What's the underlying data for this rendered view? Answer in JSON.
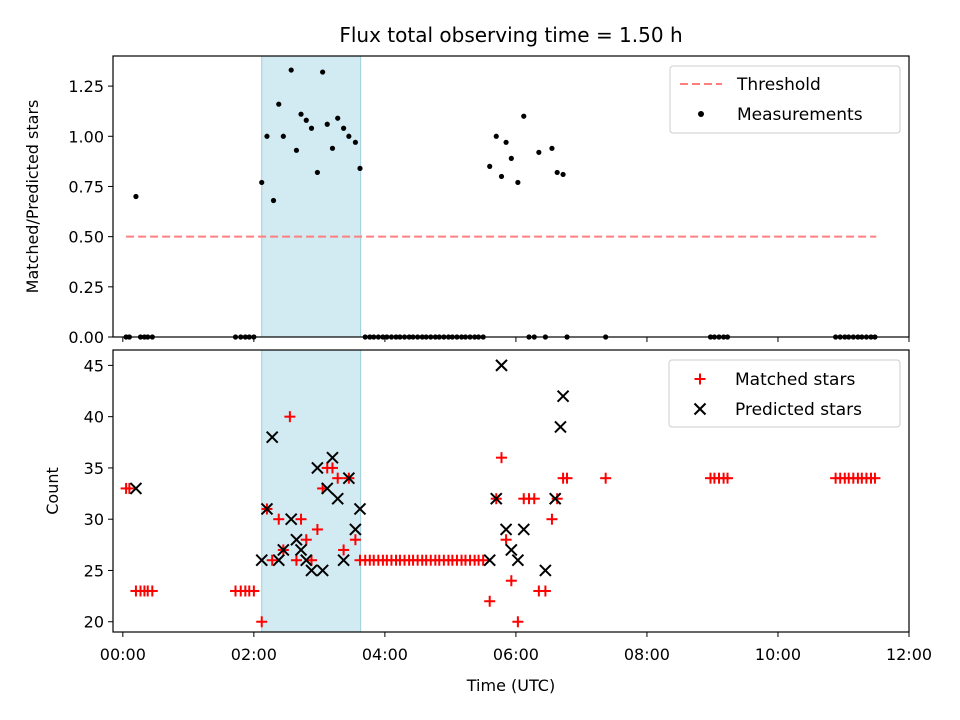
{
  "chart_data": [
    {
      "type": "scatter",
      "title": "Flux total observing time = 1.50 h",
      "ylabel": "Matched/Predicted stars",
      "xlabel": "",
      "xlim": [
        -0.15,
        12.0
      ],
      "ylim": [
        0,
        1.4
      ],
      "yticks": [
        0.0,
        0.25,
        0.5,
        0.75,
        1.0,
        1.25
      ],
      "ytick_labels": [
        "0.00",
        "0.25",
        "0.50",
        "0.75",
        "1.00",
        "1.25"
      ],
      "xticks": [
        0,
        2,
        4,
        6,
        8,
        10,
        12
      ],
      "xtick_labels": [
        "",
        "",
        "",
        "",
        "",
        "",
        ""
      ],
      "shaded_span": [
        2.12,
        3.63
      ],
      "shaded_color": "#add8e6",
      "legend": {
        "position": "upper right",
        "entries": [
          "Threshold",
          "Measurements"
        ]
      },
      "threshold": {
        "name": "Threshold",
        "y": 0.5,
        "x": [
          0.05,
          11.5
        ],
        "color": "#ff7f7f",
        "style": "dashed"
      },
      "measurements": {
        "name": "Measurements",
        "color": "#000000",
        "x": [
          0.05,
          0.1,
          0.2,
          0.27,
          0.33,
          0.38,
          0.45,
          1.72,
          1.8,
          1.87,
          1.93,
          2.0,
          2.12,
          2.2,
          2.3,
          2.38,
          2.45,
          2.57,
          2.65,
          2.72,
          2.8,
          2.88,
          2.97,
          3.05,
          3.12,
          3.2,
          3.28,
          3.37,
          3.45,
          3.55,
          3.62,
          3.7,
          3.77,
          3.83,
          3.9,
          3.97,
          4.03,
          4.1,
          4.17,
          4.23,
          4.3,
          4.37,
          4.43,
          4.5,
          4.57,
          4.63,
          4.7,
          4.77,
          4.83,
          4.9,
          4.97,
          5.03,
          5.1,
          5.17,
          5.23,
          5.3,
          5.37,
          5.43,
          5.5,
          5.6,
          5.7,
          5.78,
          5.85,
          5.93,
          6.03,
          6.12,
          6.2,
          6.28,
          6.35,
          6.45,
          6.55,
          6.63,
          6.72,
          6.78,
          7.37,
          8.97,
          9.03,
          9.1,
          9.17,
          9.23,
          10.88,
          10.95,
          11.02,
          11.08,
          11.15,
          11.22,
          11.28,
          11.35,
          11.42,
          11.48
        ],
        "y": [
          0,
          0,
          0.7,
          0,
          0,
          0,
          0,
          0,
          0,
          0,
          0,
          0,
          0.77,
          1.0,
          0.68,
          1.16,
          1.0,
          1.33,
          0.93,
          1.11,
          1.08,
          1.04,
          0.82,
          1.32,
          1.06,
          0.94,
          1.09,
          1.04,
          1.0,
          0.97,
          0.84,
          0,
          0,
          0,
          0,
          0,
          0,
          0,
          0,
          0,
          0,
          0,
          0,
          0,
          0,
          0,
          0,
          0,
          0,
          0,
          0,
          0,
          0,
          0,
          0,
          0,
          0,
          0,
          0,
          0.85,
          1.0,
          0.8,
          0.97,
          0.89,
          0.77,
          1.1,
          0,
          0,
          0.92,
          0,
          0.94,
          0.82,
          0.81,
          0,
          0,
          0,
          0,
          0,
          0,
          0,
          0,
          0,
          0,
          0,
          0,
          0,
          0,
          0,
          0,
          0
        ]
      }
    },
    {
      "type": "scatter",
      "title": "",
      "ylabel": "Count",
      "xlabel": "Time (UTC)",
      "xlim": [
        -0.15,
        12.0
      ],
      "ylim": [
        19,
        46.5
      ],
      "yticks": [
        20,
        25,
        30,
        35,
        40,
        45
      ],
      "ytick_labels": [
        "20",
        "25",
        "30",
        "35",
        "40",
        "45"
      ],
      "xticks": [
        0,
        2,
        4,
        6,
        8,
        10,
        12
      ],
      "xtick_labels": [
        "00:00",
        "02:00",
        "04:00",
        "06:00",
        "08:00",
        "10:00",
        "12:00"
      ],
      "shaded_span": [
        2.12,
        3.63
      ],
      "shaded_color": "#add8e6",
      "legend": {
        "position": "upper right",
        "entries": [
          "Matched stars",
          "Predicted stars"
        ]
      },
      "series": [
        {
          "name": "Matched stars",
          "marker": "plus",
          "color": "#ff0000",
          "x": [
            0.05,
            0.1,
            0.2,
            0.27,
            0.33,
            0.38,
            0.45,
            1.72,
            1.8,
            1.87,
            1.93,
            2.0,
            2.12,
            2.2,
            2.28,
            2.38,
            2.45,
            2.55,
            2.65,
            2.72,
            2.8,
            2.88,
            2.97,
            3.05,
            3.12,
            3.2,
            3.28,
            3.37,
            3.45,
            3.55,
            3.62,
            3.7,
            3.77,
            3.83,
            3.9,
            3.97,
            4.03,
            4.1,
            4.17,
            4.23,
            4.3,
            4.37,
            4.43,
            4.5,
            4.57,
            4.63,
            4.7,
            4.77,
            4.83,
            4.9,
            4.97,
            5.03,
            5.1,
            5.17,
            5.23,
            5.3,
            5.37,
            5.43,
            5.5,
            5.6,
            5.7,
            5.78,
            5.85,
            5.93,
            6.03,
            6.12,
            6.2,
            6.28,
            6.35,
            6.45,
            6.55,
            6.63,
            6.72,
            6.78,
            7.37,
            8.97,
            9.03,
            9.1,
            9.17,
            9.23,
            10.88,
            10.95,
            11.02,
            11.08,
            11.15,
            11.22,
            11.28,
            11.35,
            11.42,
            11.48
          ],
          "y": [
            33,
            33,
            23,
            23,
            23,
            23,
            23,
            23,
            23,
            23,
            23,
            23,
            20,
            31,
            26,
            30,
            27,
            40,
            26,
            30,
            28,
            26,
            29,
            33,
            35,
            35,
            34,
            27,
            34,
            28,
            26,
            26,
            26,
            26,
            26,
            26,
            26,
            26,
            26,
            26,
            26,
            26,
            26,
            26,
            26,
            26,
            26,
            26,
            26,
            26,
            26,
            26,
            26,
            26,
            26,
            26,
            26,
            26,
            26,
            22,
            32,
            36,
            28,
            24,
            20,
            32,
            32,
            32,
            23,
            23,
            30,
            32,
            34,
            34,
            34,
            34,
            34,
            34,
            34,
            34,
            34,
            34,
            34,
            34,
            34,
            34,
            34,
            34,
            34,
            34
          ]
        },
        {
          "name": "Predicted stars",
          "marker": "x",
          "color": "#000000",
          "x": [
            0.2,
            2.12,
            2.2,
            2.28,
            2.38,
            2.45,
            2.57,
            2.65,
            2.72,
            2.8,
            2.88,
            2.97,
            3.05,
            3.12,
            3.2,
            3.28,
            3.37,
            3.45,
            3.55,
            3.62,
            5.6,
            5.7,
            5.78,
            5.85,
            5.93,
            6.03,
            6.12,
            6.45,
            6.6,
            6.68,
            6.72
          ],
          "y": [
            33,
            26,
            31,
            38,
            26,
            27,
            30,
            28,
            27,
            26,
            25,
            35,
            25,
            33,
            36,
            32,
            26,
            34,
            29,
            31,
            26,
            32,
            45,
            29,
            27,
            26,
            29,
            25,
            32,
            39,
            42
          ]
        }
      ]
    }
  ]
}
